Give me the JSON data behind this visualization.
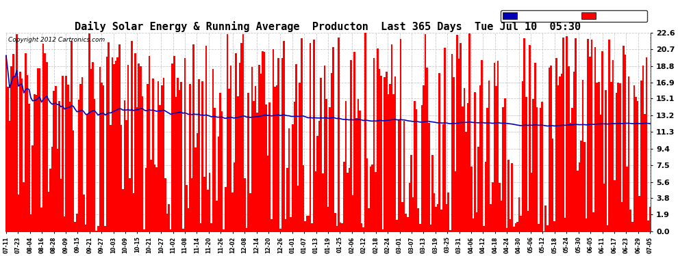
{
  "title": "Daily Solar Energy & Running Average  Producton  Last 365 Days  Tue Jul 10  05:30",
  "copyright": "Copyright 2012 Cartronics.com",
  "ylabel_values": [
    0.0,
    1.9,
    3.8,
    5.6,
    7.5,
    9.4,
    11.3,
    13.2,
    15.1,
    16.9,
    18.8,
    20.7,
    22.6
  ],
  "ylim": [
    0.0,
    22.6
  ],
  "bar_color": "#FF0000",
  "avg_color": "#0000BB",
  "legend_avg_bg": "#0000BB",
  "legend_daily_bg": "#FF0000",
  "background_color": "#FFFFFF",
  "grid_color": "#BBBBBB",
  "title_fontsize": 11,
  "n_bars": 365,
  "x_tick_labels": [
    "07-11",
    "07-23",
    "08-04",
    "08-16",
    "08-28",
    "09-09",
    "09-15",
    "09-21",
    "09-27",
    "10-03",
    "10-09",
    "10-15",
    "10-21",
    "10-27",
    "11-02",
    "11-08",
    "11-14",
    "11-20",
    "11-26",
    "12-02",
    "12-08",
    "12-14",
    "12-20",
    "12-26",
    "01-01",
    "01-07",
    "01-13",
    "01-19",
    "01-25",
    "02-06",
    "02-12",
    "02-18",
    "02-24",
    "03-01",
    "03-07",
    "03-13",
    "03-19",
    "03-25",
    "03-31",
    "04-06",
    "04-12",
    "04-18",
    "04-24",
    "04-30",
    "05-06",
    "05-12",
    "05-18",
    "05-24",
    "05-30",
    "06-05",
    "06-11",
    "06-17",
    "06-23",
    "06-29",
    "07-05"
  ]
}
